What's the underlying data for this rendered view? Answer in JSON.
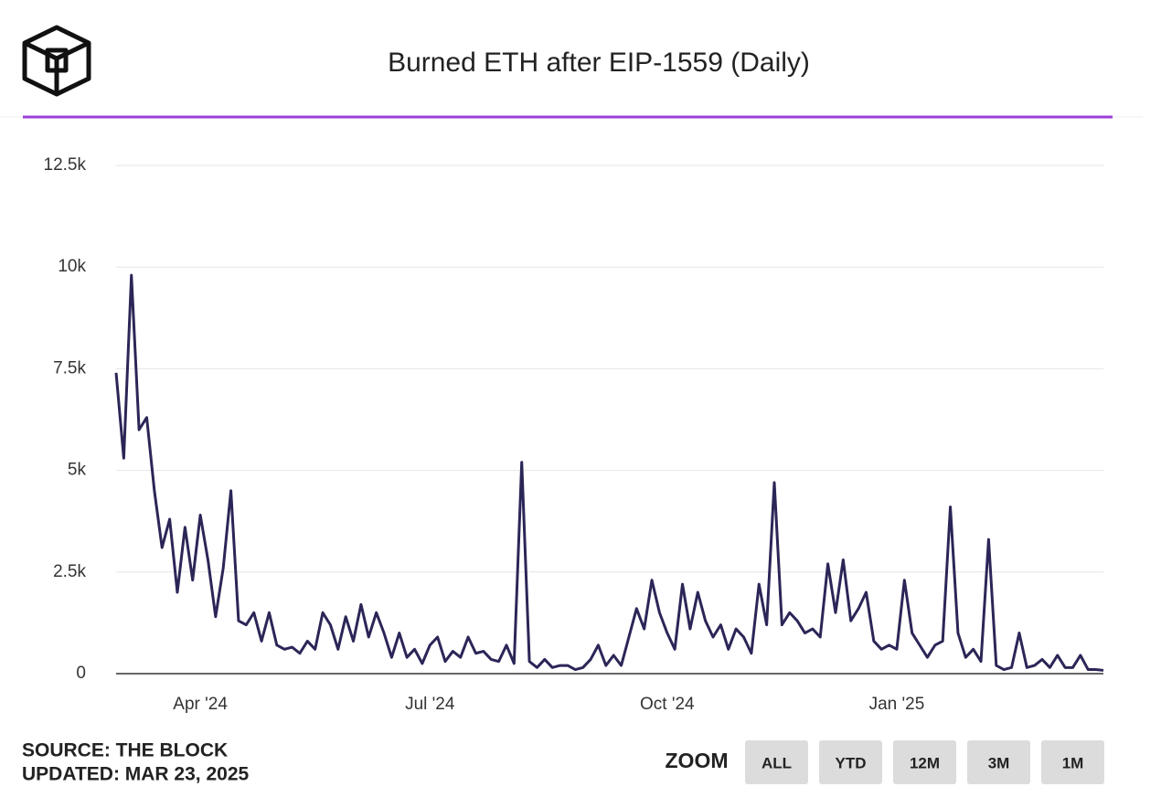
{
  "chart_data": {
    "type": "line",
    "title": "Burned ETH after EIP-1559 (Daily)",
    "categories": [
      null,
      null,
      null,
      null,
      null,
      null,
      null,
      null,
      null,
      null,
      null,
      "Apr '24",
      null,
      null,
      null,
      null,
      null,
      null,
      null,
      null,
      null,
      null,
      null,
      null,
      null,
      null,
      null,
      null,
      null,
      null,
      null,
      null,
      null,
      null,
      null,
      null,
      null,
      null,
      null,
      null,
      null,
      "Jul '24",
      null,
      null,
      null,
      null,
      null,
      null,
      null,
      null,
      null,
      null,
      null,
      null,
      null,
      null,
      null,
      null,
      null,
      null,
      null,
      null,
      null,
      null,
      null,
      null,
      null,
      null,
      null,
      null,
      null,
      null,
      "Oct '24",
      null,
      null,
      null,
      null,
      null,
      null,
      null,
      null,
      null,
      null,
      null,
      null,
      null,
      null,
      null,
      null,
      null,
      null,
      null,
      null,
      null,
      null,
      null,
      null,
      null,
      null,
      null,
      null,
      null,
      "Jan '25",
      null,
      null,
      null,
      null,
      null,
      null,
      null,
      null,
      null,
      null,
      null,
      null,
      null,
      null,
      null,
      null,
      null,
      null,
      null,
      null,
      null,
      null,
      null,
      null,
      null,
      null,
      null
    ],
    "series": [
      {
        "name": "Burned ETH",
        "color": "#2b2657",
        "values": [
          7400,
          5300,
          9800,
          6000,
          6300,
          4500,
          3100,
          3800,
          2000,
          3600,
          2300,
          3900,
          2800,
          1400,
          2600,
          4500,
          1300,
          1200,
          1500,
          800,
          1500,
          700,
          600,
          650,
          500,
          800,
          600,
          1500,
          1200,
          600,
          1400,
          800,
          1700,
          900,
          1500,
          1000,
          400,
          1000,
          400,
          600,
          250,
          700,
          900,
          300,
          550,
          400,
          900,
          500,
          550,
          350,
          300,
          700,
          250,
          5200,
          300,
          150,
          350,
          150,
          200,
          200,
          100,
          150,
          350,
          700,
          200,
          450,
          200,
          900,
          1600,
          1100,
          2300,
          1500,
          1000,
          600,
          2200,
          1100,
          2000,
          1300,
          900,
          1200,
          600,
          1100,
          900,
          500,
          2200,
          1200,
          4700,
          1200,
          1500,
          1300,
          1000,
          1100,
          900,
          2700,
          1500,
          2800,
          1300,
          1600,
          2000,
          800,
          600,
          700,
          600,
          2300,
          1000,
          700,
          400,
          700,
          800,
          4100,
          1000,
          400,
          600,
          300,
          3300,
          200,
          100,
          150,
          1000,
          150,
          200,
          350,
          150,
          450,
          150,
          150,
          450,
          100,
          100,
          80
        ]
      }
    ],
    "ylim": [
      0,
      12500
    ],
    "yticks": [
      0,
      {
        "value": 2500,
        "label": "2.5k"
      },
      {
        "value": 5000,
        "label": "5k"
      },
      {
        "value": 7500,
        "label": "7.5k"
      },
      {
        "value": 10000,
        "label": "10k"
      },
      {
        "value": 12500,
        "label": "12.5k"
      }
    ],
    "grid": true,
    "source": "SOURCE: THE BLOCK",
    "updated": "UPDATED: MAR 23, 2025",
    "zoom_label": "ZOOM",
    "zoom_buttons": [
      "ALL",
      "YTD",
      "12M",
      "3M",
      "1M"
    ]
  }
}
